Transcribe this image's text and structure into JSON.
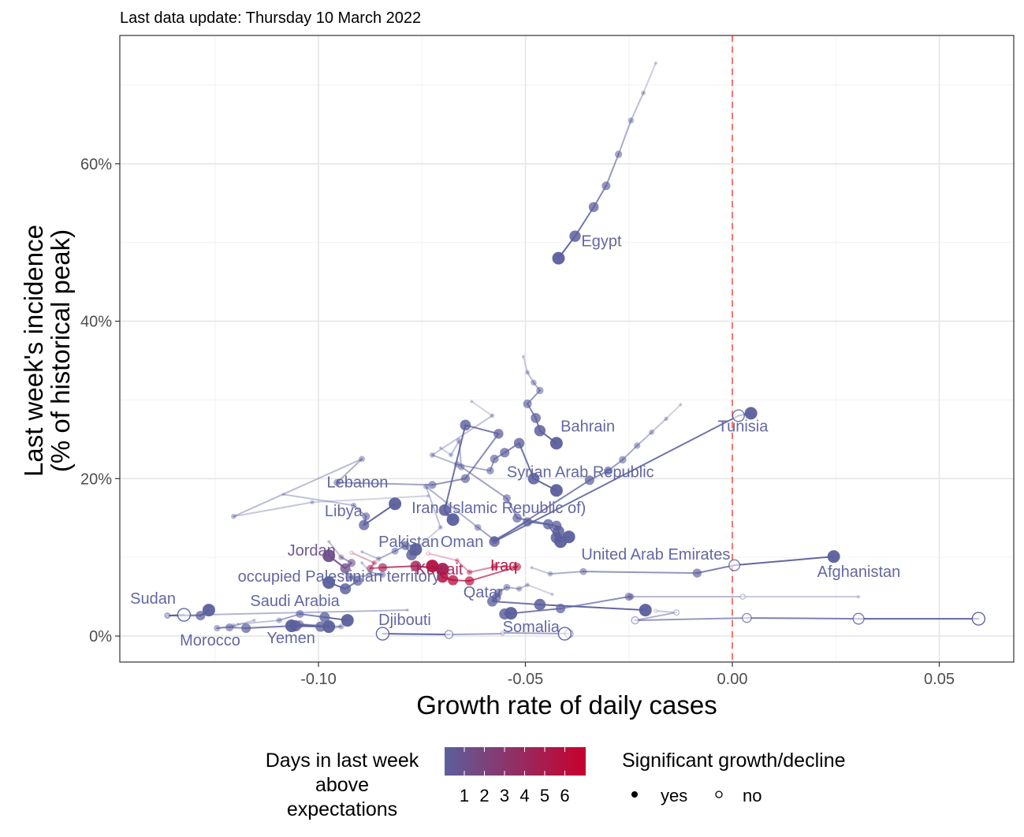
{
  "subtitle": "Last data update: Thursday 10 March 2022",
  "chart_data": {
    "type": "scatter",
    "xlabel": "Growth rate of daily cases",
    "ylabel_line1": "Last week's incidence",
    "ylabel_line2": "(% of historical peak)",
    "xlim": [
      -0.148,
      0.068
    ],
    "ylim": [
      -3.3,
      76.3
    ],
    "x_ticks": [
      {
        "value": -0.1,
        "label": "-0.10"
      },
      {
        "value": -0.05,
        "label": "-0.05"
      },
      {
        "value": 0.0,
        "label": "0.00"
      },
      {
        "value": 0.05,
        "label": "0.05"
      }
    ],
    "y_ticks": [
      {
        "value": 0,
        "label": "0%"
      },
      {
        "value": 20,
        "label": "20%"
      },
      {
        "value": 40,
        "label": "40%"
      },
      {
        "value": 60,
        "label": "60%"
      }
    ],
    "reference_line_x": 0,
    "reference_line_color": "#f8766d",
    "grid": true,
    "color_low": "#5b5f9c",
    "color_high": "#c8002d",
    "series": [
      {
        "label": "Egypt",
        "days": 0,
        "trail": [
          [
            -0.0185,
            72.8
          ],
          [
            -0.0215,
            69.0
          ],
          [
            -0.0245,
            65.5
          ],
          [
            -0.0275,
            61.2
          ],
          [
            -0.0305,
            57.2
          ],
          [
            -0.0335,
            54.5
          ],
          [
            -0.038,
            50.8
          ],
          [
            -0.042,
            48.0
          ]
        ],
        "sig": [
          1,
          1,
          1,
          1,
          1,
          1,
          1,
          1
        ],
        "label_pos": [
          -0.0365,
          49.5
        ]
      },
      {
        "label": "Bahrain",
        "days": 0,
        "trail": [
          [
            -0.0505,
            35.5
          ],
          [
            -0.0495,
            33.5
          ],
          [
            -0.048,
            32.2
          ],
          [
            -0.0465,
            31.2
          ],
          [
            -0.0495,
            29.5
          ],
          [
            -0.0475,
            27.7
          ],
          [
            -0.0465,
            26.1
          ],
          [
            -0.0425,
            24.5
          ]
        ],
        "sig": [
          1,
          1,
          1,
          1,
          1,
          1,
          1,
          1
        ],
        "label_pos": [
          -0.0415,
          26.0
        ]
      },
      {
        "label": "Tunisia",
        "days": 0,
        "trail": [
          [
            -0.0125,
            29.4
          ],
          [
            -0.016,
            27.6
          ],
          [
            -0.0195,
            25.9
          ],
          [
            -0.023,
            24.2
          ],
          [
            -0.0265,
            22.4
          ],
          [
            -0.03,
            21.0
          ],
          [
            -0.0345,
            19.8
          ],
          [
            -0.0575,
            12.0
          ],
          [
            0.0015,
            28.0
          ],
          [
            0.0045,
            28.3
          ]
        ],
        "sig": [
          1,
          1,
          1,
          1,
          1,
          1,
          1,
          1,
          0,
          1
        ],
        "label_pos": [
          -0.0035,
          26.0
        ]
      },
      {
        "label": "Syrian Arab Republic",
        "days": 0,
        "trail": [
          [
            -0.063,
            29.8
          ],
          [
            -0.058,
            28.0
          ],
          [
            -0.0725,
            23.0
          ],
          [
            -0.0665,
            21.8
          ],
          [
            -0.0585,
            21.0
          ],
          [
            -0.0575,
            22.5
          ],
          [
            -0.055,
            23.3
          ],
          [
            -0.0515,
            24.5
          ],
          [
            -0.048,
            20.0
          ],
          [
            -0.0425,
            18.5
          ]
        ],
        "sig": [
          1,
          1,
          1,
          1,
          1,
          1,
          1,
          1,
          1,
          1
        ],
        "label_pos": [
          -0.0545,
          20.2
        ]
      },
      {
        "label": "Lebanon",
        "days": 0,
        "trail": [
          [
            -0.0735,
            17.8
          ],
          [
            -0.1015,
            17.0
          ],
          [
            -0.1205,
            15.2
          ],
          [
            -0.0895,
            22.5
          ],
          [
            -0.0955,
            19.5
          ],
          [
            -0.0725,
            19.2
          ],
          [
            -0.0645,
            20.0
          ],
          [
            -0.0565,
            25.7
          ],
          [
            -0.0645,
            26.8
          ],
          [
            -0.0695,
            16.0
          ],
          [
            -0.0675,
            14.8
          ]
        ],
        "sig": [
          1,
          1,
          1,
          1,
          1,
          1,
          1,
          1,
          1,
          1,
          1
        ],
        "label_pos": [
          -0.098,
          18.9
        ]
      },
      {
        "label": "Iran (Islamic Republic of)",
        "days": 0,
        "trail": [
          [
            -0.0705,
            23.9
          ],
          [
            -0.068,
            23.0
          ],
          [
            -0.066,
            24.8
          ],
          [
            -0.0655,
            21.5
          ],
          [
            -0.0545,
            17.5
          ],
          [
            -0.052,
            15.0
          ],
          [
            -0.0425,
            14.0
          ],
          [
            -0.042,
            13.3
          ],
          [
            -0.0415,
            12.0
          ]
        ],
        "sig": [
          1,
          1,
          1,
          1,
          1,
          1,
          1,
          1,
          1
        ],
        "label_pos": [
          -0.0775,
          15.6
        ]
      },
      {
        "label": "Libya",
        "days": 0,
        "trail": [
          [
            -0.1085,
            18.0
          ],
          [
            -0.0915,
            16.6
          ],
          [
            -0.0885,
            15.2
          ],
          [
            -0.089,
            14.1
          ],
          [
            -0.0815,
            16.8
          ]
        ],
        "sig": [
          1,
          1,
          1,
          1,
          1
        ],
        "label_pos": [
          -0.0985,
          15.2
        ]
      },
      {
        "label": "Oman",
        "days": 0,
        "trail": [
          [
            -0.0755,
            11.5
          ],
          [
            -0.0705,
            13.8
          ],
          [
            -0.074,
            19.0
          ],
          [
            -0.0615,
            13.8
          ],
          [
            -0.0575,
            12.2
          ],
          [
            -0.0495,
            14.5
          ],
          [
            -0.0445,
            14.2
          ],
          [
            -0.0425,
            12.5
          ],
          [
            -0.0395,
            12.6
          ]
        ],
        "sig": [
          1,
          1,
          1,
          1,
          1,
          1,
          1,
          1,
          1
        ],
        "label_pos": [
          -0.0705,
          11.3
        ]
      },
      {
        "label": "Pakistan",
        "days": 0,
        "trail": [
          [
            -0.0895,
            10.7
          ],
          [
            -0.0855,
            9.8
          ],
          [
            -0.0815,
            10.8
          ],
          [
            -0.079,
            11.5
          ],
          [
            -0.0775,
            10.3
          ],
          [
            -0.0765,
            11.0
          ]
        ],
        "sig": [
          1,
          1,
          1,
          1,
          1,
          1
        ],
        "label_pos": [
          -0.0855,
          11.3
        ]
      },
      {
        "label": "Jordan",
        "days": 1,
        "trail": [
          [
            -0.0975,
            12.0
          ],
          [
            -0.0945,
            10.0
          ],
          [
            -0.092,
            9.3
          ],
          [
            -0.0935,
            8.6
          ],
          [
            -0.0975,
            10.2
          ]
        ],
        "sig": [
          1,
          1,
          1,
          1,
          1
        ],
        "label_pos": [
          -0.1075,
          10.2
        ]
      },
      {
        "label": "Kuwait",
        "days": 4,
        "trail": [
          [
            -0.092,
            10.6
          ],
          [
            -0.0865,
            9.3
          ],
          [
            -0.0875,
            8.6
          ],
          [
            -0.0845,
            8.7
          ],
          [
            -0.0765,
            8.9
          ],
          [
            -0.07,
            8.5
          ]
        ],
        "sig": [
          0,
          1,
          1,
          1,
          1,
          1
        ],
        "label_pos": [
          -0.0765,
          7.8
        ]
      },
      {
        "label": "Iraq",
        "days": 5,
        "trail": [
          [
            -0.0735,
            10.5
          ],
          [
            -0.0665,
            9.6
          ],
          [
            -0.0635,
            8.1
          ],
          [
            -0.0575,
            8.8
          ],
          [
            -0.052,
            8.8
          ],
          [
            -0.0635,
            7.0
          ],
          [
            -0.0675,
            7.1
          ],
          [
            -0.07,
            7.5
          ],
          [
            -0.0725,
            8.9
          ]
        ],
        "sig": [
          0,
          1,
          1,
          1,
          1,
          1,
          1,
          1,
          1
        ],
        "label_pos": [
          -0.0585,
          8.3
        ]
      },
      {
        "label": "United Arab Emirates",
        "days": 0,
        "trail": [
          [
            -0.0485,
            8.7
          ],
          [
            -0.044,
            7.9
          ],
          [
            -0.036,
            8.2
          ],
          [
            -0.0085,
            8.0
          ],
          [
            0.0005,
            9.0
          ],
          [
            0.0245,
            10.1
          ]
        ],
        "sig": [
          1,
          1,
          1,
          1,
          0,
          1
        ],
        "label_pos": [
          -0.0365,
          9.7
        ]
      },
      {
        "label": "occupied Palestinian territory",
        "days": 0,
        "trail": [
          [
            -0.0895,
            9.3
          ],
          [
            -0.0875,
            8.1
          ],
          [
            -0.0845,
            7.8
          ],
          [
            -0.0925,
            7.5
          ],
          [
            -0.0905,
            7.0
          ],
          [
            -0.0935,
            6.0
          ],
          [
            -0.0975,
            6.8
          ]
        ],
        "sig": [
          1,
          1,
          1,
          1,
          1,
          1,
          1
        ],
        "label_pos": [
          -0.1195,
          6.9
        ]
      },
      {
        "label": "Afghanistan",
        "days": 0,
        "trail": [
          [
            0.0305,
            5.0
          ],
          [
            0.0025,
            5.0
          ],
          [
            -0.0245,
            5.0
          ],
          [
            -0.025,
            5.0
          ],
          [
            -0.0415,
            3.5
          ],
          [
            -0.055,
            2.8
          ],
          [
            -0.0535,
            2.9
          ]
        ],
        "sig": [
          1,
          0,
          1,
          1,
          1,
          1,
          1
        ],
        "label_pos": [
          0.0205,
          7.5
        ]
      },
      {
        "label": "Qatar",
        "days": 0,
        "trail": [
          [
            -0.0435,
            5.3
          ],
          [
            -0.0495,
            6.5
          ],
          [
            -0.0515,
            6.0
          ],
          [
            -0.0545,
            6.2
          ],
          [
            -0.0565,
            5.5
          ],
          [
            -0.057,
            4.9
          ],
          [
            -0.058,
            4.4
          ],
          [
            -0.0465,
            4.0
          ],
          [
            -0.021,
            3.3
          ]
        ],
        "sig": [
          1,
          1,
          1,
          1,
          1,
          1,
          1,
          1,
          1
        ],
        "label_pos": [
          -0.065,
          4.9
        ]
      },
      {
        "label": "Sudan",
        "days": 0,
        "trail": [
          [
            -0.0785,
            3.3
          ],
          [
            -0.1365,
            2.6
          ],
          [
            -0.1285,
            2.6
          ],
          [
            -0.1265,
            3.3
          ]
        ],
        "sig": [
          1,
          1,
          1,
          1
        ],
        "label_pos": [
          -0.1455,
          4.1
        ]
      },
      {
        "label": "Saudi Arabia",
        "days": 0,
        "trail": [
          [
            -0.1195,
            1.5
          ],
          [
            -0.1095,
            2.0
          ],
          [
            -0.1045,
            2.8
          ],
          [
            -0.0985,
            2.4
          ],
          [
            -0.093,
            2.0
          ]
        ],
        "sig": [
          1,
          1,
          1,
          1,
          1
        ],
        "label_pos": [
          -0.1165,
          3.8
        ]
      },
      {
        "label": "Morocco",
        "days": 0,
        "trail": [
          [
            -0.1155,
            2.0
          ],
          [
            -0.1205,
            1.3
          ],
          [
            -0.1245,
            1.0
          ],
          [
            -0.1215,
            1.1
          ],
          [
            -0.1175,
            1.0
          ],
          [
            -0.1055,
            1.3
          ],
          [
            -0.0975,
            1.2
          ]
        ],
        "sig": [
          1,
          1,
          1,
          1,
          1,
          1,
          1
        ],
        "label_pos": [
          -0.1335,
          -1.2
        ]
      },
      {
        "label": "Yemen",
        "days": 0,
        "trail": [
          [
            -0.0965,
            1.0
          ],
          [
            -0.0945,
            1.2
          ],
          [
            -0.1045,
            1.5
          ],
          [
            -0.0995,
            1.2
          ],
          [
            -0.1065,
            1.3
          ]
        ],
        "sig": [
          1,
          1,
          1,
          1,
          1
        ],
        "label_pos": [
          -0.1125,
          -0.9
        ]
      },
      {
        "label": "Djibouti",
        "days": 0,
        "trail": [
          [
            -0.0555,
            0.3
          ],
          [
            -0.0685,
            0.2
          ],
          [
            -0.0845,
            0.3
          ]
        ],
        "sig": [
          0,
          0,
          0
        ],
        "label_pos": [
          -0.0855,
          1.4
        ]
      },
      {
        "label": "Somalia",
        "days": 0,
        "trail": [
          [
            -0.0555,
            0.4
          ],
          [
            -0.0395,
            0.3
          ],
          [
            -0.0405,
            0.3
          ]
        ],
        "sig": [
          0,
          0,
          0
        ],
        "label_pos": [
          -0.0555,
          0.5
        ]
      },
      {
        "label": "",
        "days": 0,
        "trail": [
          [
            -0.0185,
            3.2
          ],
          [
            -0.0135,
            3.0
          ],
          [
            -0.0235,
            2.0
          ],
          [
            0.0035,
            2.3
          ],
          [
            0.0305,
            2.2
          ],
          [
            0.0595,
            2.2
          ]
        ],
        "sig": [
          0,
          0,
          0,
          0,
          0,
          0
        ],
        "label_pos": null
      },
      {
        "label": "",
        "days": 0,
        "trail": [
          [
            -0.1365,
            2.6
          ],
          [
            -0.1325,
            2.7
          ]
        ],
        "sig": [
          0,
          0
        ],
        "label_pos": null
      }
    ],
    "legend_color": {
      "title_lines": [
        "Days in last week",
        "above",
        "expectations"
      ],
      "labels": [
        "1",
        "2",
        "3",
        "4",
        "5",
        "6"
      ]
    },
    "legend_shape": {
      "title": "Significant growth/decline",
      "items": [
        {
          "label": "yes",
          "filled": true
        },
        {
          "label": "no",
          "filled": false
        }
      ]
    }
  }
}
